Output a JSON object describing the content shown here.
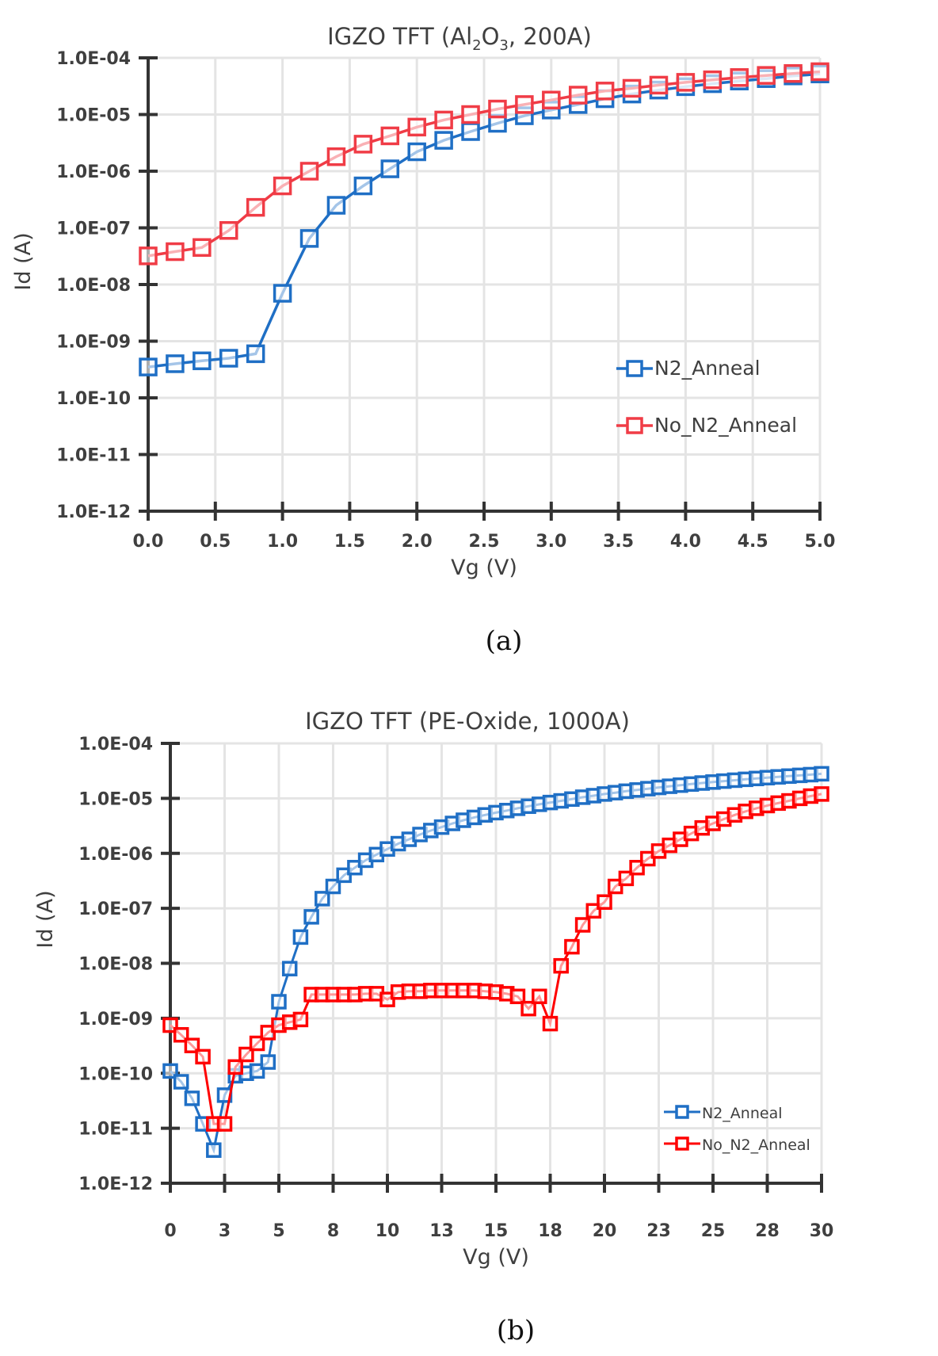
{
  "chart_data": [
    {
      "id": "a",
      "type": "line",
      "title": "IGZO TFT (Al2O3, 200A)",
      "title_parts": [
        "IGZO TFT (Al",
        "2",
        "O",
        "3",
        ", 200A)"
      ],
      "xlabel": "Vg (V)",
      "ylabel": "Id (A)",
      "yscale": "log",
      "xlim": [
        0,
        5
      ],
      "ylim": [
        1e-12,
        0.0001
      ],
      "xticks": [
        0,
        0.5,
        1,
        1.5,
        2,
        2.5,
        3,
        3.5,
        4,
        4.5,
        5
      ],
      "xtick_labels": [
        "0.0",
        "0.5",
        "1.0",
        "1.5",
        "2.0",
        "2.5",
        "3.0",
        "3.5",
        "4.0",
        "4.5",
        "5.0"
      ],
      "yticks": [
        0.0001,
        1e-05,
        1e-06,
        1e-07,
        1e-08,
        1e-09,
        1e-10,
        1e-11,
        1e-12
      ],
      "ytick_labels": [
        "1.0E-04",
        "1.0E-05",
        "1.0E-06",
        "1.0E-07",
        "1.0E-08",
        "1.0E-09",
        "1.0E-10",
        "1.0E-11",
        "1.0E-12"
      ],
      "grid": true,
      "legend_position": "center-right",
      "caption": "(a)",
      "x": [
        0,
        0.2,
        0.4,
        0.6,
        0.8,
        1.0,
        1.2,
        1.4,
        1.6,
        1.8,
        2.0,
        2.2,
        2.4,
        2.6,
        2.8,
        3.0,
        3.2,
        3.4,
        3.6,
        3.8,
        4.0,
        4.2,
        4.4,
        4.6,
        4.8,
        5.0
      ],
      "series": [
        {
          "name": "N2_Anneal",
          "color": "#1f6fc5",
          "marker": "square-open",
          "values": [
            3.5e-10,
            4e-10,
            4.5e-10,
            5e-10,
            6e-10,
            7e-09,
            6.5e-08,
            2.5e-07,
            5.5e-07,
            1.1e-06,
            2.2e-06,
            3.5e-06,
            5e-06,
            7e-06,
            9.5e-06,
            1.2e-05,
            1.5e-05,
            1.9e-05,
            2.3e-05,
            2.7e-05,
            3.1e-05,
            3.5e-05,
            3.9e-05,
            4.3e-05,
            4.8e-05,
            5.2e-05
          ]
        },
        {
          "name": "No_N2_Anneal",
          "color": "#f03c46",
          "marker": "square-open",
          "values": [
            3.2e-08,
            3.8e-08,
            4.5e-08,
            9e-08,
            2.3e-07,
            5.5e-07,
            1e-06,
            1.8e-06,
            3e-06,
            4.2e-06,
            6e-06,
            8e-06,
            1e-05,
            1.25e-05,
            1.5e-05,
            1.8e-05,
            2.2e-05,
            2.6e-05,
            2.9e-05,
            3.3e-05,
            3.7e-05,
            4.1e-05,
            4.5e-05,
            4.9e-05,
            5.3e-05,
            5.7e-05
          ]
        }
      ]
    },
    {
      "id": "b",
      "type": "line",
      "title": "IGZO TFT (PE-Oxide, 1000A)",
      "xlabel": "Vg (V)",
      "ylabel": "Id (A)",
      "yscale": "log",
      "xlim": [
        0,
        30
      ],
      "ylim": [
        1e-12,
        0.0001
      ],
      "xticks": [
        0,
        2.5,
        5,
        7.5,
        10,
        12.5,
        15,
        17.5,
        20,
        22.5,
        25,
        27.5,
        30
      ],
      "xtick_labels": [
        "0",
        "3",
        "5",
        "8",
        "10",
        "13",
        "15",
        "18",
        "20",
        "23",
        "25",
        "28",
        "30"
      ],
      "yticks": [
        0.0001,
        1e-05,
        1e-06,
        1e-07,
        1e-08,
        1e-09,
        1e-10,
        1e-11,
        1e-12
      ],
      "ytick_labels": [
        "1.0E-04",
        "1.0E-05",
        "1.0E-06",
        "1.0E-07",
        "1.0E-08",
        "1.0E-09",
        "1.0E-10",
        "1.0E-11",
        "1.0E-12"
      ],
      "grid": true,
      "legend_position": "bottom-right",
      "caption": "(b)",
      "x": [
        0,
        0.5,
        1,
        1.5,
        2,
        2.5,
        3,
        3.5,
        4,
        4.5,
        5,
        5.5,
        6,
        6.5,
        7,
        7.5,
        8,
        8.5,
        9,
        9.5,
        10,
        10.5,
        11,
        11.5,
        12,
        12.5,
        13,
        13.5,
        14,
        14.5,
        15,
        15.5,
        16,
        16.5,
        17,
        17.5,
        18,
        18.5,
        19,
        19.5,
        20,
        20.5,
        21,
        21.5,
        22,
        22.5,
        23,
        23.5,
        24,
        24.5,
        25,
        25.5,
        26,
        26.5,
        27,
        27.5,
        28,
        28.5,
        29,
        29.5,
        30
      ],
      "series": [
        {
          "name": "N2_Anneal",
          "color": "#1f6fc5",
          "marker": "square-open",
          "values": [
            1.1e-10,
            7e-11,
            3.5e-11,
            1.2e-11,
            4e-12,
            4e-11,
            9e-11,
            1e-10,
            1.1e-10,
            1.6e-10,
            2e-09,
            8e-09,
            3e-08,
            7e-08,
            1.5e-07,
            2.5e-07,
            4e-07,
            5.5e-07,
            7.5e-07,
            9.5e-07,
            1.2e-06,
            1.5e-06,
            1.8e-06,
            2.2e-06,
            2.6e-06,
            3e-06,
            3.5e-06,
            4e-06,
            4.5e-06,
            5e-06,
            5.5e-06,
            6e-06,
            6.6e-06,
            7.2e-06,
            7.8e-06,
            8.4e-06,
            9e-06,
            9.7e-06,
            1.05e-05,
            1.12e-05,
            1.2e-05,
            1.27e-05,
            1.35e-05,
            1.42e-05,
            1.5e-05,
            1.58e-05,
            1.66e-05,
            1.74e-05,
            1.82e-05,
            1.9e-05,
            1.98e-05,
            2.06e-05,
            2.14e-05,
            2.22e-05,
            2.3e-05,
            2.38e-05,
            2.46e-05,
            2.54e-05,
            2.62e-05,
            2.7e-05,
            2.8e-05
          ]
        },
        {
          "name": "No_N2_Anneal",
          "color": "#ff0000",
          "marker": "square-open",
          "values": [
            7.5e-10,
            5e-10,
            3.2e-10,
            2e-10,
            1.2e-11,
            1.2e-11,
            1.3e-10,
            2.2e-10,
            3.5e-10,
            5.5e-10,
            7.5e-10,
            8.5e-10,
            9.5e-10,
            2.7e-09,
            2.7e-09,
            2.7e-09,
            2.7e-09,
            2.7e-09,
            2.8e-09,
            2.8e-09,
            2.2e-09,
            3e-09,
            3.1e-09,
            3.1e-09,
            3.2e-09,
            3.2e-09,
            3.2e-09,
            3.2e-09,
            3.2e-09,
            3.1e-09,
            3e-09,
            2.8e-09,
            2.5e-09,
            1.5e-09,
            2.5e-09,
            8e-10,
            9e-09,
            2e-08,
            5e-08,
            9e-08,
            1.3e-07,
            2.5e-07,
            3.5e-07,
            5.5e-07,
            8e-07,
            1.1e-06,
            1.4e-06,
            1.8e-06,
            2.3e-06,
            2.9e-06,
            3.5e-06,
            4.2e-06,
            5e-06,
            5.8e-06,
            6.6e-06,
            7.4e-06,
            8.2e-06,
            9e-06,
            1e-05,
            1.1e-05,
            1.2e-05
          ]
        }
      ]
    }
  ]
}
